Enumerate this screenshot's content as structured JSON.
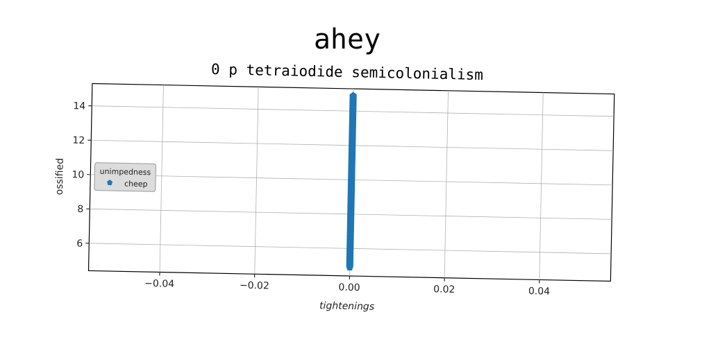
{
  "chart_data": {
    "type": "scatter",
    "title": "ahey",
    "subtitle": "0 p tetraiodide semicolonialism",
    "xlabel": "tightenings",
    "ylabel": "ossified",
    "xlim": [
      -0.055,
      0.055
    ],
    "ylim": [
      4.4,
      15.3
    ],
    "xticks": [
      -0.04,
      -0.02,
      0.0,
      0.02,
      0.04
    ],
    "xtick_labels": [
      "−0.04",
      "−0.02",
      "0.00",
      "0.02",
      "0.04"
    ],
    "yticks": [
      6,
      8,
      10,
      12,
      14
    ],
    "ytick_labels": [
      "6",
      "8",
      "10",
      "12",
      "14"
    ],
    "grid": true,
    "legend": {
      "title": "unimpedness",
      "placement": "center-left",
      "entries": [
        "cheep"
      ]
    },
    "series": [
      {
        "name": "cheep",
        "marker": "pentagon",
        "color": "#1f77b4",
        "x": [
          0,
          0,
          0,
          0,
          0,
          0,
          0,
          0,
          0,
          0,
          0,
          0,
          0,
          0,
          0,
          0,
          0,
          0,
          0,
          0,
          0,
          0,
          0,
          0,
          0,
          0,
          0,
          0,
          0,
          0,
          0,
          0,
          0,
          0,
          0,
          0,
          0,
          0,
          0,
          0,
          0,
          0,
          0,
          0,
          0,
          0,
          0,
          0,
          0,
          0,
          0,
          0,
          0,
          0,
          0,
          0,
          0,
          0,
          0,
          0,
          0,
          0,
          0,
          0,
          0,
          0,
          0,
          0,
          0,
          0,
          0,
          0,
          0,
          0,
          0,
          0,
          0,
          0,
          0,
          0,
          0,
          0,
          0,
          0,
          0,
          0,
          0,
          0,
          0,
          0,
          0,
          0,
          0,
          0,
          0,
          0,
          0,
          0,
          0,
          0,
          0,
          0,
          0,
          0,
          0,
          0,
          0,
          0,
          0,
          0,
          0,
          0,
          0,
          0,
          0,
          0,
          0,
          0,
          0,
          0,
          0,
          0,
          0,
          0,
          0,
          0,
          0,
          0,
          0,
          0,
          0,
          0,
          0,
          0,
          0,
          0,
          0,
          0,
          0,
          0,
          0,
          0,
          0,
          0,
          0,
          0,
          0,
          0,
          0,
          0,
          0,
          0,
          0,
          0,
          0,
          0,
          0,
          0,
          0,
          0,
          0,
          0,
          0,
          0,
          0,
          0,
          0,
          0,
          0,
          0,
          0,
          0,
          0,
          0,
          0,
          0,
          0,
          0,
          0,
          0,
          0,
          0,
          0,
          0,
          0,
          0,
          0,
          0,
          0,
          0,
          0,
          0,
          0,
          0,
          0,
          0,
          0,
          0,
          0,
          0,
          0
        ],
        "y": [
          4.9,
          4.95,
          5.0,
          5.05,
          5.1,
          5.15,
          5.2,
          5.25,
          5.3,
          5.35,
          5.4,
          5.45,
          5.5,
          5.55,
          5.6,
          5.65,
          5.7,
          5.75,
          5.8,
          5.85,
          5.9,
          5.95,
          6.0,
          6.05,
          6.1,
          6.15,
          6.2,
          6.25,
          6.3,
          6.35,
          6.4,
          6.45,
          6.5,
          6.55,
          6.6,
          6.65,
          6.7,
          6.75,
          6.8,
          6.85,
          6.9,
          6.95,
          7.0,
          7.05,
          7.1,
          7.15,
          7.2,
          7.25,
          7.3,
          7.35,
          7.4,
          7.45,
          7.5,
          7.55,
          7.6,
          7.65,
          7.7,
          7.75,
          7.8,
          7.85,
          7.9,
          7.95,
          8.0,
          8.05,
          8.1,
          8.15,
          8.2,
          8.25,
          8.3,
          8.35,
          8.4,
          8.45,
          8.5,
          8.55,
          8.6,
          8.65,
          8.7,
          8.75,
          8.8,
          8.85,
          8.9,
          8.95,
          9.0,
          9.05,
          9.1,
          9.15,
          9.2,
          9.25,
          9.3,
          9.35,
          9.4,
          9.45,
          9.5,
          9.55,
          9.6,
          9.65,
          9.7,
          9.75,
          9.8,
          9.85,
          9.9,
          9.95,
          10.0,
          10.05,
          10.1,
          10.15,
          10.2,
          10.25,
          10.3,
          10.35,
          10.4,
          10.45,
          10.5,
          10.55,
          10.6,
          10.65,
          10.7,
          10.75,
          10.8,
          10.85,
          10.9,
          10.95,
          11.0,
          11.05,
          11.1,
          11.15,
          11.2,
          11.25,
          11.3,
          11.35,
          11.4,
          11.45,
          11.5,
          11.55,
          11.6,
          11.65,
          11.7,
          11.75,
          11.8,
          11.85,
          11.9,
          11.95,
          12.0,
          12.05,
          12.1,
          12.15,
          12.2,
          12.25,
          12.3,
          12.35,
          12.4,
          12.45,
          12.5,
          12.55,
          12.6,
          12.65,
          12.7,
          12.75,
          12.8,
          12.85,
          12.9,
          12.95,
          13.0,
          13.05,
          13.1,
          13.15,
          13.2,
          13.25,
          13.3,
          13.35,
          13.4,
          13.45,
          13.5,
          13.55,
          13.6,
          13.65,
          13.7,
          13.75,
          13.8,
          13.85,
          13.9,
          13.95,
          14.0,
          14.05,
          14.1,
          14.15,
          14.2,
          14.25,
          14.3,
          14.35,
          14.4,
          14.45,
          14.5,
          14.55,
          14.6,
          14.65,
          14.7,
          14.75,
          14.8,
          14.85,
          14.9
        ]
      }
    ]
  }
}
